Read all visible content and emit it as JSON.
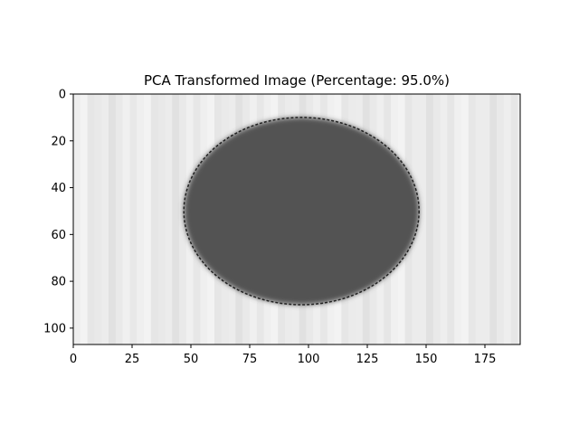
{
  "chart_data": {
    "type": "heatmap",
    "title": "PCA Transformed Image (Percentage: 95.0%)",
    "xlabel": "",
    "ylabel": "",
    "colormap": "gray",
    "image_size": {
      "width": 190,
      "height": 107
    },
    "xlim": [
      0,
      190
    ],
    "ylim": [
      107,
      0
    ],
    "x_ticks": [
      0,
      25,
      50,
      75,
      100,
      125,
      150,
      175
    ],
    "y_ticks": [
      0,
      20,
      40,
      60,
      80,
      100
    ],
    "background_level": 0.92,
    "blob": {
      "description_values": "dark elliptical region",
      "center": [
        97,
        50
      ],
      "half_width": 50,
      "half_height": 40,
      "level": 0.32
    },
    "grid": false,
    "colors": {
      "frame": "#000000",
      "background": "#ffffff"
    }
  }
}
